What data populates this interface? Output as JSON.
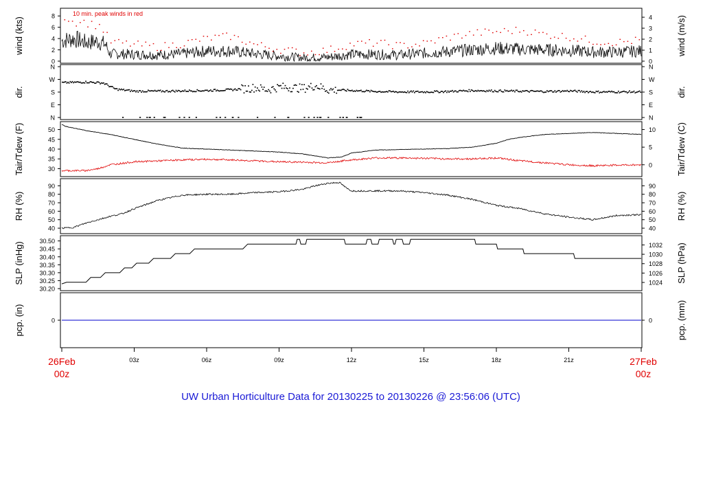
{
  "title": "UW Urban Horticulture Data for 20130225  to  20130226 @ 23:56:06  (UTC)",
  "colors": {
    "title": "#1a1ad6",
    "time_ends": "#e00000",
    "peak": "#e00000",
    "dew": "#e00000",
    "precip": "#0000cc",
    "line": "#000000"
  },
  "time_axis": {
    "start_label": [
      "26Feb",
      "00z"
    ],
    "end_label": [
      "27Feb",
      "00z"
    ],
    "ticks": [
      {
        "hour": 3,
        "label": "03z"
      },
      {
        "hour": 6,
        "label": "06z"
      },
      {
        "hour": 9,
        "label": "09z"
      },
      {
        "hour": 12,
        "label": "12z"
      },
      {
        "hour": 15,
        "label": "15z"
      },
      {
        "hour": 18,
        "label": "18z"
      },
      {
        "hour": 21,
        "label": "21z"
      }
    ],
    "range_hours": [
      0,
      24
    ]
  },
  "panels": {
    "wind": {
      "ylabel_left": "wind (kts)",
      "ylabel_right": "wind (m/s)",
      "left_ticks": [
        "0",
        "2",
        "4",
        "6",
        "8"
      ],
      "right_ticks": [
        "0",
        "1",
        "2",
        "3",
        "4"
      ],
      "ylim": [
        0,
        9
      ],
      "legend_note": "10 min. peak winds in red"
    },
    "dir": {
      "ylabel_left": "dir.",
      "ylabel_right": "dir.",
      "left_ticks": [
        "N",
        "E",
        "S",
        "W",
        "N"
      ],
      "right_ticks": [
        "N",
        "E",
        "S",
        "W",
        "N"
      ],
      "ylim": [
        0,
        360
      ]
    },
    "temp": {
      "ylabel_left": "Tair/Tdew (F)",
      "ylabel_right": "Tair/Tdew (C)",
      "left_ticks": [
        "30",
        "35",
        "40",
        "45",
        "50"
      ],
      "right_ticks": [
        "0",
        "5",
        "10"
      ],
      "ylim": [
        27,
        53
      ]
    },
    "rh": {
      "ylabel_left": "RH (%)",
      "ylabel_right": "RH (%)",
      "left_ticks": [
        "40",
        "50",
        "60",
        "70",
        "80",
        "90"
      ],
      "right_ticks": [
        "40",
        "50",
        "60",
        "70",
        "80",
        "90"
      ],
      "ylim": [
        36,
        96
      ]
    },
    "slp": {
      "ylabel_left": "SLP (inHg)",
      "ylabel_right": "SLP (hPa)",
      "left_ticks": [
        "30.20",
        "30.25",
        "30.30",
        "30.35",
        "30.40",
        "30.45",
        "30.50"
      ],
      "right_ticks": [
        "1024",
        "1026",
        "1028",
        "1030",
        "1032"
      ],
      "ylim": [
        30.2,
        30.52
      ]
    },
    "pcp": {
      "ylabel_left": "pcp. (in)",
      "ylabel_right": "pcp. (mm)",
      "left_ticks": [
        "0"
      ],
      "right_ticks": [
        "0"
      ],
      "ylim": [
        -0.5,
        0.5
      ]
    }
  },
  "chart_data": {
    "type": "line",
    "x_unit": "hours UTC since 26Feb 00z",
    "wind_kts": [
      [
        0,
        3.6
      ],
      [
        0.5,
        4.0
      ],
      [
        1,
        3.3
      ],
      [
        1.5,
        3.5
      ],
      [
        1.8,
        3.0
      ],
      [
        2,
        1.3
      ],
      [
        3,
        1.2
      ],
      [
        4,
        1.1
      ],
      [
        5,
        1.3
      ],
      [
        6,
        1.8
      ],
      [
        7,
        1.8
      ],
      [
        8,
        1.3
      ],
      [
        9,
        0.9
      ],
      [
        10,
        0.6
      ],
      [
        11,
        0.7
      ],
      [
        12,
        1.2
      ],
      [
        13,
        1.2
      ],
      [
        14,
        1.1
      ],
      [
        15,
        1.4
      ],
      [
        16,
        1.7
      ],
      [
        17,
        2.0
      ],
      [
        18,
        2.3
      ],
      [
        19,
        2.1
      ],
      [
        20,
        2.0
      ],
      [
        21,
        1.9
      ],
      [
        22,
        1.6
      ],
      [
        23,
        1.6
      ],
      [
        24,
        1.8
      ]
    ],
    "peak_wind_kts": [
      [
        0.2,
        7.8
      ],
      [
        0.5,
        6.9
      ],
      [
        0.8,
        7.2
      ],
      [
        1.2,
        6.6
      ],
      [
        1.6,
        6.3
      ],
      [
        2,
        3.5
      ],
      [
        3,
        3.0
      ],
      [
        4,
        2.6
      ],
      [
        5,
        3.2
      ],
      [
        6,
        4.1
      ],
      [
        7,
        4.5
      ],
      [
        8,
        3.0
      ],
      [
        9,
        2.2
      ],
      [
        10,
        1.6
      ],
      [
        11,
        2.0
      ],
      [
        12,
        3.1
      ],
      [
        13,
        3.3
      ],
      [
        14,
        2.8
      ],
      [
        15,
        3.2
      ],
      [
        16,
        4.3
      ],
      [
        17,
        5.0
      ],
      [
        18,
        5.3
      ],
      [
        19,
        5.6
      ],
      [
        20,
        4.8
      ],
      [
        21,
        4.4
      ],
      [
        22,
        3.6
      ],
      [
        23,
        3.4
      ],
      [
        24,
        3.8
      ]
    ],
    "dir_deg": [
      [
        0,
        250
      ],
      [
        1,
        255
      ],
      [
        1.7,
        248
      ],
      [
        2.2,
        205
      ],
      [
        3,
        190
      ],
      [
        4,
        190
      ],
      [
        5,
        192
      ],
      [
        6,
        195
      ],
      [
        7,
        200
      ],
      [
        8,
        215
      ],
      [
        8.5,
        200
      ],
      [
        9,
        220
      ],
      [
        10,
        210
      ],
      [
        10.5,
        230
      ],
      [
        11,
        200
      ],
      [
        12,
        195
      ],
      [
        13,
        188
      ],
      [
        14,
        185
      ],
      [
        15,
        185
      ],
      [
        16,
        188
      ],
      [
        17,
        195
      ],
      [
        18,
        192
      ],
      [
        19,
        190
      ],
      [
        20,
        188
      ],
      [
        21,
        192
      ],
      [
        22,
        185
      ],
      [
        23,
        185
      ],
      [
        24,
        185
      ]
    ],
    "tair_f": [
      [
        0,
        52.5
      ],
      [
        0.2,
        51.5
      ],
      [
        1,
        49.5
      ],
      [
        2,
        47.5
      ],
      [
        3,
        45.0
      ],
      [
        4,
        42.5
      ],
      [
        5,
        40.5
      ],
      [
        6,
        40.0
      ],
      [
        7,
        39.5
      ],
      [
        8,
        39.0
      ],
      [
        9,
        38.5
      ],
      [
        10,
        37.5
      ],
      [
        11,
        35.5
      ],
      [
        11.6,
        36.0
      ],
      [
        12,
        38.0
      ],
      [
        13,
        39.5
      ],
      [
        14,
        39.8
      ],
      [
        15,
        40.0
      ],
      [
        16,
        40.3
      ],
      [
        17,
        41.0
      ],
      [
        18,
        43.0
      ],
      [
        18.5,
        45.0
      ],
      [
        19,
        46.0
      ],
      [
        20,
        47.5
      ],
      [
        21,
        48.0
      ],
      [
        22,
        48.5
      ],
      [
        23,
        48.0
      ],
      [
        24,
        47.5
      ]
    ],
    "tdew_f": [
      [
        0,
        29.0
      ],
      [
        1,
        29.0
      ],
      [
        1.5,
        30.0
      ],
      [
        2,
        32.0
      ],
      [
        3,
        33.5
      ],
      [
        4,
        34.0
      ],
      [
        5,
        34.5
      ],
      [
        6,
        34.8
      ],
      [
        7,
        34.5
      ],
      [
        8,
        34.0
      ],
      [
        9,
        33.5
      ],
      [
        10,
        33.3
      ],
      [
        11,
        33.0
      ],
      [
        12,
        34.5
      ],
      [
        13,
        35.5
      ],
      [
        14,
        35.5
      ],
      [
        15,
        35.3
      ],
      [
        16,
        35.0
      ],
      [
        17,
        35.0
      ],
      [
        18,
        35.5
      ],
      [
        19,
        34.0
      ],
      [
        20,
        33.0
      ],
      [
        21,
        32.0
      ],
      [
        22,
        31.5
      ],
      [
        23,
        31.8
      ],
      [
        24,
        32.0
      ]
    ],
    "rh_pct": [
      [
        0,
        40
      ],
      [
        0.5,
        41
      ],
      [
        1,
        46
      ],
      [
        2,
        54
      ],
      [
        2.5,
        57
      ],
      [
        3,
        63
      ],
      [
        4,
        73
      ],
      [
        5,
        79
      ],
      [
        6,
        80
      ],
      [
        7,
        80
      ],
      [
        8,
        82
      ],
      [
        9,
        83
      ],
      [
        10,
        86
      ],
      [
        10.5,
        90
      ],
      [
        11,
        93
      ],
      [
        11.5,
        94
      ],
      [
        11.8,
        87
      ],
      [
        12,
        84
      ],
      [
        13,
        84
      ],
      [
        14,
        84
      ],
      [
        15,
        82
      ],
      [
        16,
        79
      ],
      [
        17,
        74
      ],
      [
        18,
        67
      ],
      [
        19,
        63
      ],
      [
        20,
        57
      ],
      [
        21,
        53
      ],
      [
        22,
        50
      ],
      [
        23,
        55
      ],
      [
        24,
        56
      ]
    ],
    "slp_inhg": [
      [
        0,
        30.23
      ],
      [
        0.2,
        30.24
      ],
      [
        1,
        30.24
      ],
      [
        1.2,
        30.27
      ],
      [
        1.6,
        30.27
      ],
      [
        1.8,
        30.3
      ],
      [
        2.4,
        30.3
      ],
      [
        2.6,
        30.33
      ],
      [
        2.9,
        30.33
      ],
      [
        3.1,
        30.36
      ],
      [
        3.6,
        30.36
      ],
      [
        3.8,
        30.39
      ],
      [
        4.5,
        30.39
      ],
      [
        4.7,
        30.42
      ],
      [
        5.3,
        30.42
      ],
      [
        5.5,
        30.45
      ],
      [
        7.5,
        30.45
      ],
      [
        7.7,
        30.48
      ],
      [
        9.7,
        30.48
      ],
      [
        9.75,
        30.51
      ],
      [
        9.85,
        30.51
      ],
      [
        9.9,
        30.48
      ],
      [
        10.1,
        30.48
      ],
      [
        10.15,
        30.51
      ],
      [
        11.7,
        30.51
      ],
      [
        11.75,
        30.48
      ],
      [
        12.6,
        30.48
      ],
      [
        12.65,
        30.51
      ],
      [
        12.8,
        30.51
      ],
      [
        12.85,
        30.48
      ],
      [
        13.1,
        30.48
      ],
      [
        13.15,
        30.51
      ],
      [
        13.7,
        30.51
      ],
      [
        13.75,
        30.48
      ],
      [
        13.8,
        30.48
      ],
      [
        13.85,
        30.51
      ],
      [
        14.1,
        30.51
      ],
      [
        14.15,
        30.48
      ],
      [
        14.4,
        30.48
      ],
      [
        14.45,
        30.51
      ],
      [
        17.1,
        30.51
      ],
      [
        17.15,
        30.48
      ],
      [
        18.0,
        30.48
      ],
      [
        18.05,
        30.45
      ],
      [
        19.1,
        30.45
      ],
      [
        19.15,
        30.42
      ],
      [
        21.2,
        30.42
      ],
      [
        21.25,
        30.39
      ],
      [
        24,
        30.39
      ]
    ],
    "precip_in": [
      [
        0,
        0
      ],
      [
        24,
        0
      ]
    ]
  }
}
